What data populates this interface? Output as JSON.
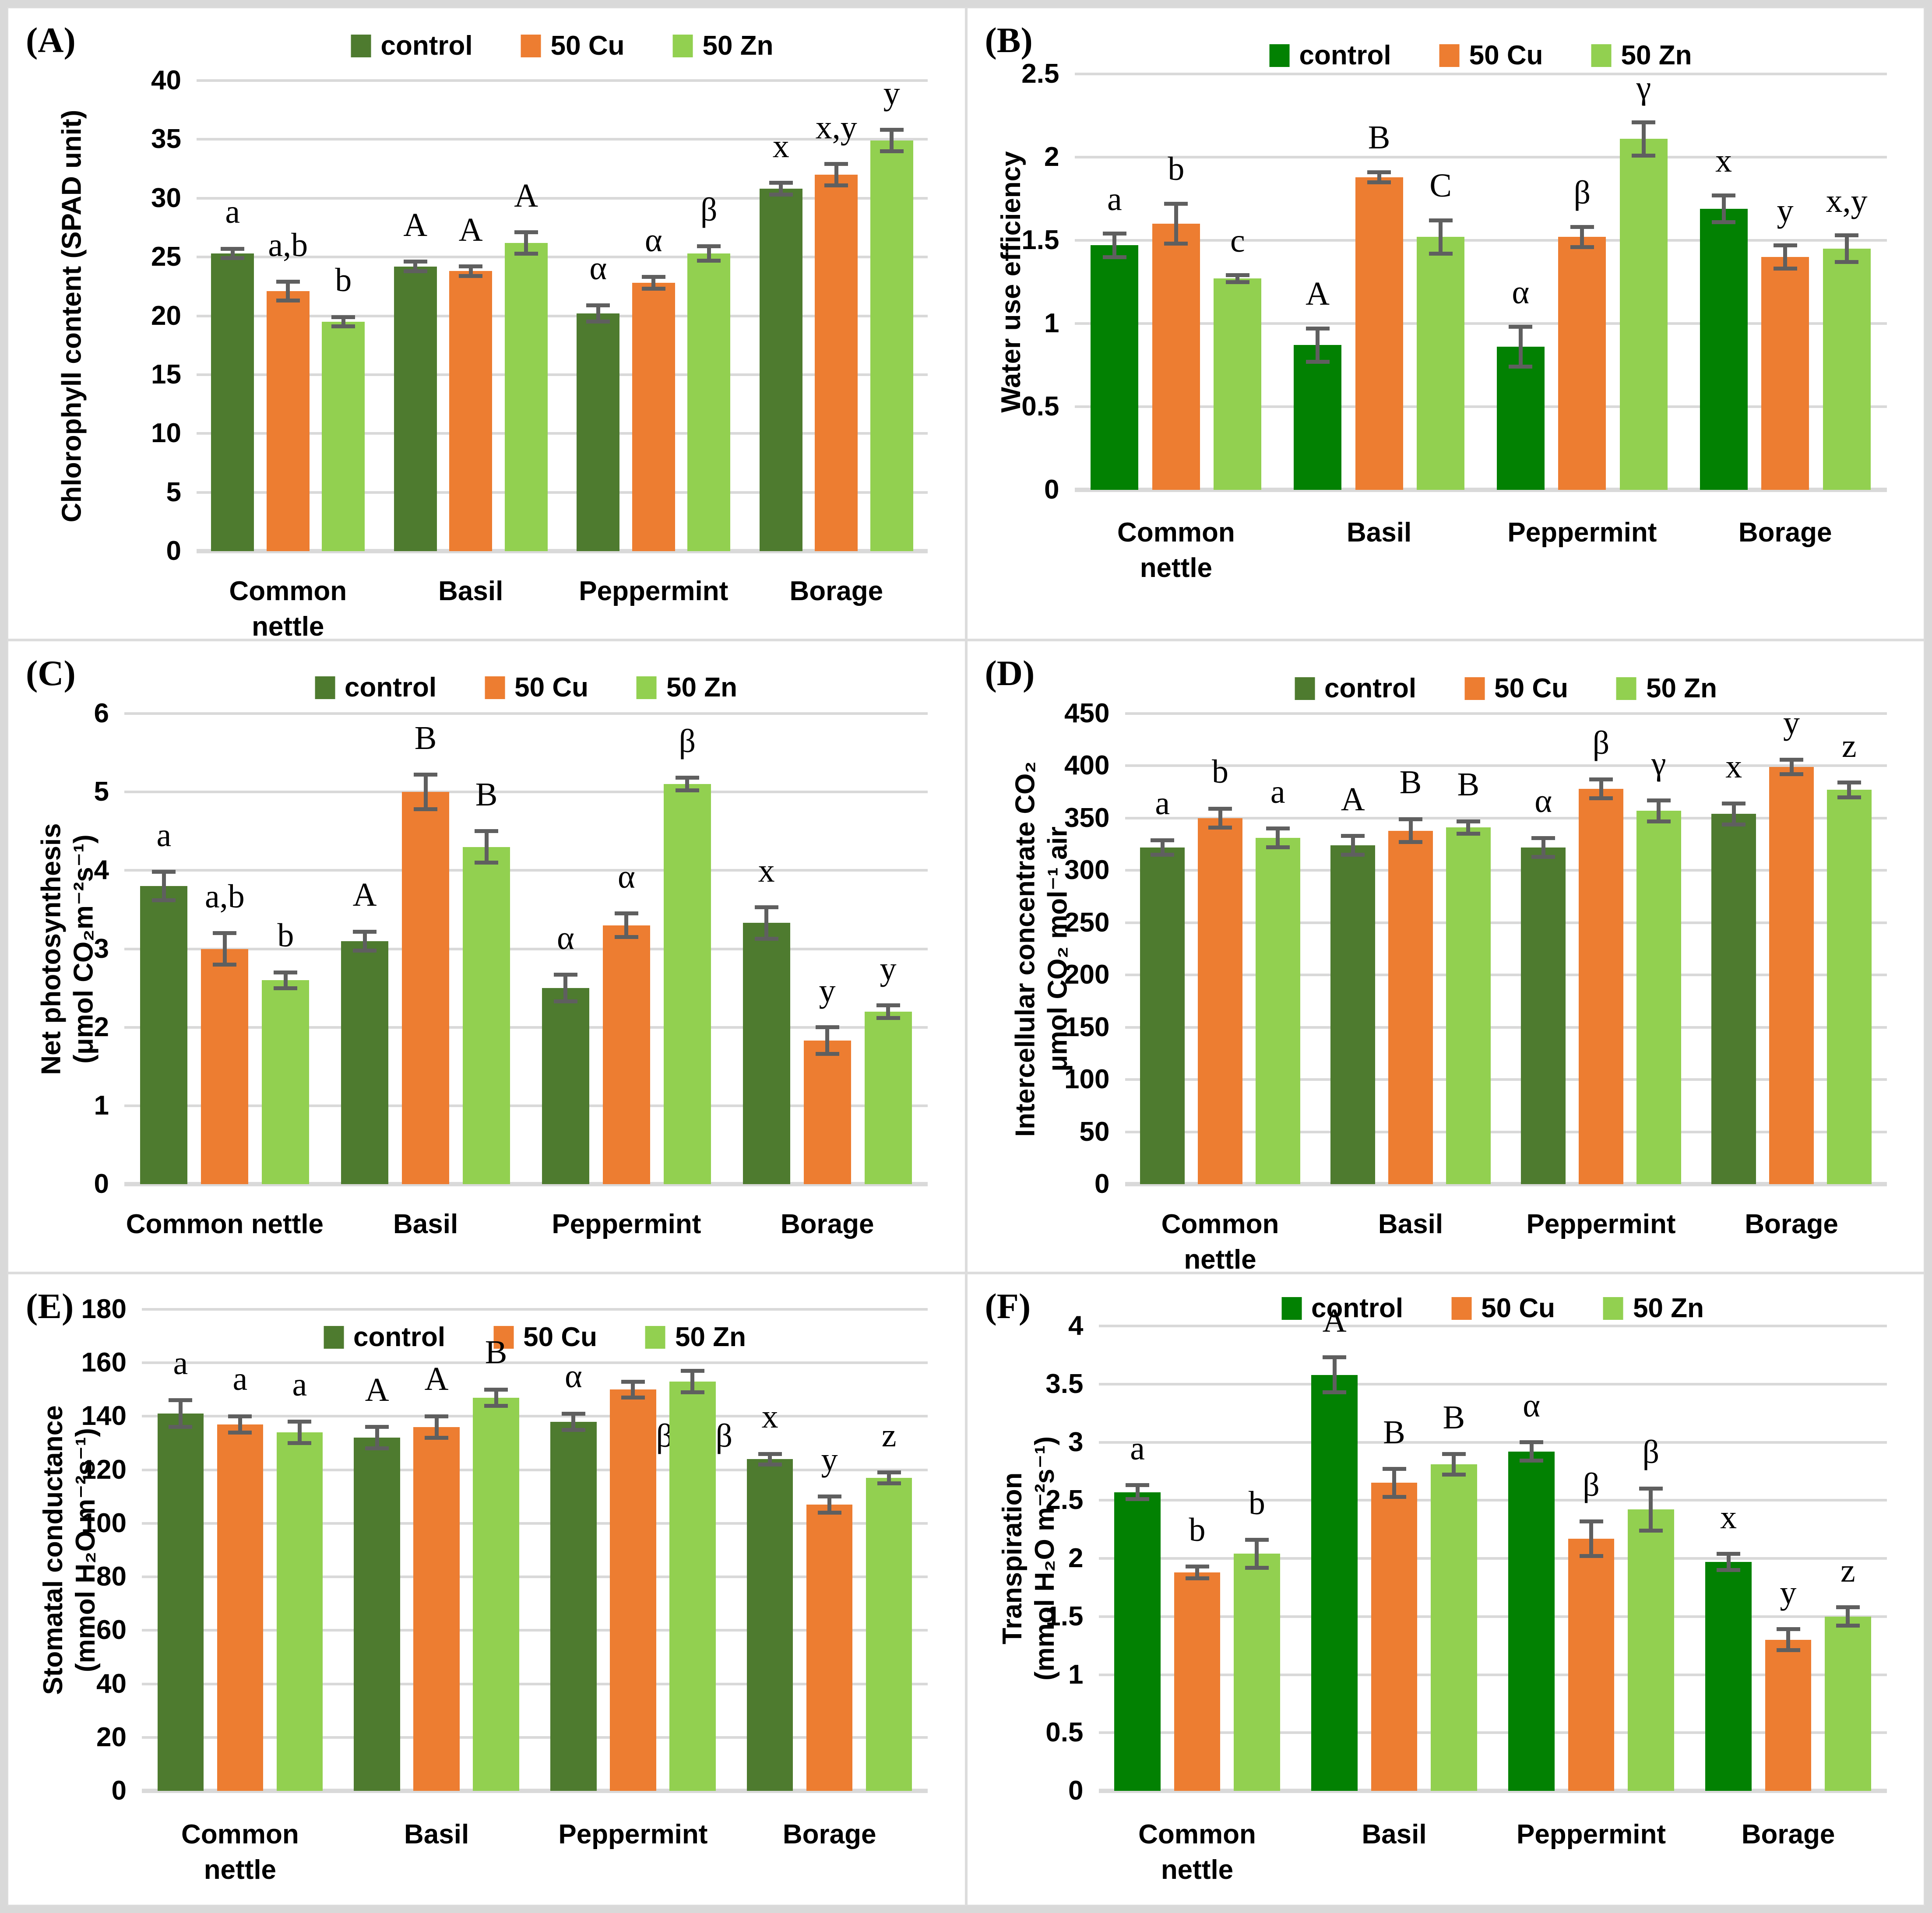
{
  "colors": {
    "control_dark": "#4e7b2f",
    "control_bright": "#028102",
    "cu": "#ed7d31",
    "zn": "#92d050",
    "error_bar": "#5f5f5f",
    "gridline": "#d9d9d9",
    "panel_border": "#dcdcdc",
    "text": "#000000"
  },
  "legend": {
    "labels": [
      "control",
      "50 Cu",
      "50 Zn"
    ]
  },
  "chart_data": [
    {
      "id": "A",
      "type": "bar",
      "panel_label": "(A)",
      "ylabel_lines": [
        "Chlorophyll content (SPAD unit)"
      ],
      "ylim": [
        0,
        40
      ],
      "yticks": {
        "values": [
          0,
          5,
          10,
          15,
          20,
          25,
          30,
          35,
          40
        ],
        "labels": [
          "0",
          "5",
          "10",
          "15",
          "20",
          "25",
          "30",
          "35",
          "40"
        ]
      },
      "grid": true,
      "legend_position": "top-center",
      "control_variant": "dark",
      "categories": [
        [
          "Common nettle"
        ],
        [
          "Basil"
        ],
        [
          "Peppermint"
        ],
        [
          "Borage"
        ]
      ],
      "series": [
        {
          "name": "control",
          "values": [
            25.3,
            24.2,
            20.2,
            30.8
          ],
          "errors": [
            0.4,
            0.4,
            0.7,
            0.5
          ],
          "labels": [
            "a",
            "A",
            "α",
            "x"
          ]
        },
        {
          "name": "50 Cu",
          "values": [
            22.1,
            23.8,
            22.8,
            32.0
          ],
          "errors": [
            0.8,
            0.4,
            0.5,
            0.9
          ],
          "labels": [
            "a,b",
            "A",
            "α",
            "x,y"
          ]
        },
        {
          "name": "50 Zn",
          "values": [
            19.5,
            26.2,
            25.3,
            34.9
          ],
          "errors": [
            0.4,
            0.9,
            0.6,
            0.9
          ],
          "labels": [
            "b",
            "A",
            "β",
            "y"
          ]
        }
      ]
    },
    {
      "id": "B",
      "type": "bar",
      "panel_label": "(B)",
      "ylabel_lines": [
        "Water use efficiency"
      ],
      "ylim": [
        0,
        2.5
      ],
      "yticks": {
        "values": [
          0,
          0.5,
          1,
          1.5,
          2,
          2.5
        ],
        "labels": [
          "0",
          "0.5",
          "1",
          "1.5",
          "2",
          "2.5"
        ]
      },
      "grid": true,
      "legend_position": "top-center",
      "control_variant": "bright",
      "categories": [
        [
          "Common",
          "nettle"
        ],
        [
          "Basil"
        ],
        [
          "Peppermint"
        ],
        [
          "Borage"
        ]
      ],
      "series": [
        {
          "name": "control",
          "values": [
            1.47,
            0.87,
            0.86,
            1.69
          ],
          "errors": [
            0.07,
            0.1,
            0.12,
            0.08
          ],
          "labels": [
            "a",
            "A",
            "α",
            "x"
          ]
        },
        {
          "name": "50 Cu",
          "values": [
            1.6,
            1.88,
            1.52,
            1.4
          ],
          "errors": [
            0.12,
            0.03,
            0.06,
            0.07
          ],
          "labels": [
            "b",
            "B",
            "β",
            "y"
          ]
        },
        {
          "name": "50 Zn",
          "values": [
            1.27,
            1.52,
            2.11,
            1.45
          ],
          "errors": [
            0.02,
            0.1,
            0.1,
            0.08
          ],
          "labels": [
            "c",
            "C",
            "γ",
            "x,y"
          ]
        }
      ]
    },
    {
      "id": "C",
      "type": "bar",
      "panel_label": "(C)",
      "ylabel_lines": [
        "Net photosynthesis",
        "(μmol CO₂m⁻²s⁻¹)"
      ],
      "ylim": [
        0,
        6
      ],
      "yticks": {
        "values": [
          0,
          1,
          2,
          3,
          4,
          5,
          6
        ],
        "labels": [
          "0",
          "1",
          "2",
          "3",
          "4",
          "5",
          "6"
        ]
      },
      "grid": true,
      "legend_position": "top-center",
      "control_variant": "dark",
      "categories": [
        [
          "Common nettle"
        ],
        [
          "Basil"
        ],
        [
          "Peppermint"
        ],
        [
          "Borage"
        ]
      ],
      "series": [
        {
          "name": "control",
          "values": [
            3.8,
            3.1,
            2.5,
            3.33
          ],
          "errors": [
            0.18,
            0.12,
            0.17,
            0.2
          ],
          "labels": [
            "a",
            "A",
            "α",
            "x"
          ]
        },
        {
          "name": "50 Cu",
          "values": [
            3.0,
            5.0,
            3.3,
            1.83
          ],
          "errors": [
            0.2,
            0.22,
            0.15,
            0.17
          ],
          "labels": [
            "a,b",
            "B",
            "α",
            "y"
          ]
        },
        {
          "name": "50 Zn",
          "values": [
            2.6,
            4.3,
            5.1,
            2.2
          ],
          "errors": [
            0.1,
            0.2,
            0.08,
            0.08
          ],
          "labels": [
            "b",
            "B",
            "β",
            "y"
          ]
        }
      ]
    },
    {
      "id": "D",
      "type": "bar",
      "panel_label": "(D)",
      "ylabel_lines": [
        "Intercellular concentrate CO₂",
        "μmol CO₂ mol⁻¹ air"
      ],
      "ylim": [
        0,
        450
      ],
      "yticks": {
        "values": [
          0,
          50,
          100,
          150,
          200,
          250,
          300,
          350,
          400,
          450
        ],
        "labels": [
          "0",
          "50",
          "100",
          "150",
          "200",
          "250",
          "300",
          "350",
          "400",
          "450"
        ]
      },
      "grid": true,
      "legend_position": "top-center",
      "control_variant": "dark",
      "categories": [
        [
          "Common nettle"
        ],
        [
          "Basil"
        ],
        [
          "Peppermint"
        ],
        [
          "Borage"
        ]
      ],
      "series": [
        {
          "name": "control",
          "values": [
            322,
            324,
            322,
            354
          ],
          "errors": [
            7,
            9,
            9,
            10
          ],
          "labels": [
            "a",
            "A",
            "α",
            "x"
          ]
        },
        {
          "name": "50 Cu",
          "values": [
            350,
            338,
            378,
            399
          ],
          "errors": [
            9,
            11,
            9,
            7
          ],
          "labels": [
            "b",
            "B",
            "β",
            "y"
          ]
        },
        {
          "name": "50 Zn",
          "values": [
            331,
            341,
            357,
            377
          ],
          "errors": [
            9,
            6,
            10,
            7
          ],
          "labels": [
            "a",
            "B",
            "γ",
            "z"
          ]
        }
      ]
    },
    {
      "id": "E",
      "type": "bar",
      "panel_label": "(E)",
      "ylabel_lines": [
        "Stomatal conductance",
        "(mmol H₂O m⁻²s⁻¹)"
      ],
      "ylim": [
        0,
        180
      ],
      "yticks": {
        "values": [
          0,
          20,
          40,
          60,
          80,
          100,
          120,
          140,
          160,
          180
        ],
        "labels": [
          "0",
          "20",
          "40",
          "60",
          "80",
          "100",
          "120",
          "140",
          "160",
          "180"
        ]
      },
      "grid": true,
      "legend_position": "top-center",
      "control_variant": "dark",
      "categories": [
        [
          "Common",
          "nettle"
        ],
        [
          "Basil"
        ],
        [
          "Peppermint"
        ],
        [
          "Borage"
        ]
      ],
      "series": [
        {
          "name": "control",
          "values": [
            141,
            132,
            138,
            124
          ],
          "errors": [
            5,
            4,
            3,
            2
          ],
          "labels": [
            "a",
            "A",
            "α",
            "x"
          ]
        },
        {
          "name": "50 Cu",
          "values": [
            137,
            136,
            150,
            107
          ],
          "errors": [
            3,
            4,
            3,
            3
          ],
          "labels": [
            "a",
            "A",
            "β",
            "y"
          ]
        },
        {
          "name": "50 Zn",
          "values": [
            134,
            147,
            153,
            117
          ],
          "errors": [
            4,
            3,
            4,
            2
          ],
          "labels": [
            "a",
            "B",
            "β",
            "z"
          ]
        }
      ],
      "label_overrides": [
        {
          "series": 1,
          "cat": 2,
          "label_y": 126,
          "dx": 72
        },
        {
          "series": 2,
          "cat": 2,
          "label_y": 126,
          "dx": 72
        }
      ]
    },
    {
      "id": "F",
      "type": "bar",
      "panel_label": "(F)",
      "ylabel_lines": [
        "Transpiration",
        "(mmol H₂O m⁻²s⁻¹)"
      ],
      "ylim": [
        0,
        4
      ],
      "yticks": {
        "values": [
          0,
          0.5,
          1,
          1.5,
          2,
          2.5,
          3,
          3.5,
          4
        ],
        "labels": [
          "0",
          "0.5",
          "1",
          "1.5",
          "2",
          "2.5",
          "3",
          "3.5",
          "4"
        ]
      },
      "grid": true,
      "legend_position": "top-center",
      "control_variant": "bright",
      "categories": [
        [
          "Common",
          "nettle"
        ],
        [
          "Basil"
        ],
        [
          "Peppermint"
        ],
        [
          "Borage"
        ]
      ],
      "series": [
        {
          "name": "control",
          "values": [
            2.57,
            3.58,
            2.92,
            1.97
          ],
          "errors": [
            0.06,
            0.15,
            0.08,
            0.07
          ],
          "labels": [
            "a",
            "A",
            "α",
            "x"
          ]
        },
        {
          "name": "50 Cu",
          "values": [
            1.88,
            2.65,
            2.17,
            1.3
          ],
          "errors": [
            0.05,
            0.12,
            0.15,
            0.09
          ],
          "labels": [
            "b",
            "B",
            "β",
            "y"
          ]
        },
        {
          "name": "50 Zn",
          "values": [
            2.04,
            2.81,
            2.42,
            1.5
          ],
          "errors": [
            0.12,
            0.09,
            0.18,
            0.08
          ],
          "labels": [
            "b",
            "B",
            "β",
            "z"
          ]
        }
      ]
    }
  ]
}
